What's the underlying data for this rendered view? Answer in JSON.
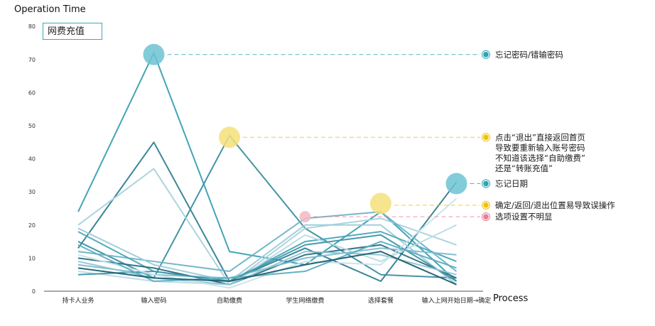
{
  "chart_data": {
    "type": "line",
    "title": "网费充值",
    "ylabel": "Operation Time",
    "xlabel": "Process",
    "ylim": [
      0,
      80
    ],
    "yticks": [
      0,
      10,
      20,
      30,
      40,
      50,
      60,
      70,
      80
    ],
    "grid": false,
    "categories": [
      "持卡人业务",
      "输入密码",
      "自助缴费",
      "学生网络缴费",
      "选择套餐",
      "输入上网开始日期→确定"
    ],
    "series": [
      {
        "color": "#3a9fb2",
        "values": [
          24,
          72,
          12,
          8,
          24,
          3
        ]
      },
      {
        "color": "#2f7f90",
        "values": [
          13,
          45,
          3,
          13,
          3,
          33
        ]
      },
      {
        "color": "#3c8ea0",
        "values": [
          15,
          4,
          47,
          19,
          5,
          4
        ]
      },
      {
        "color": "#a8d2de",
        "values": [
          20,
          37,
          2,
          19,
          22,
          14
        ]
      },
      {
        "color": "#6ab4c6",
        "values": [
          12,
          9,
          6,
          22,
          24,
          6
        ]
      },
      {
        "color": "#9fcbd8",
        "values": [
          19,
          8,
          3,
          20,
          20,
          2
        ]
      },
      {
        "color": "#4aa6b8",
        "values": [
          18,
          6,
          3,
          15,
          18,
          9
        ]
      },
      {
        "color": "#2c6e7e",
        "values": [
          10,
          7,
          2,
          11,
          14,
          4
        ]
      },
      {
        "color": "#7cbccd",
        "values": [
          8,
          5,
          4,
          10,
          13,
          11
        ]
      },
      {
        "color": "#b9dbe5",
        "values": [
          6,
          3,
          2,
          17,
          9,
          20
        ]
      },
      {
        "color": "#3d95a8",
        "values": [
          5,
          6,
          3,
          14,
          17,
          3
        ]
      },
      {
        "color": "#8ec5d3",
        "values": [
          9,
          4,
          2,
          12,
          11,
          5
        ]
      },
      {
        "color": "#c9e3eb",
        "values": [
          11,
          5,
          1,
          9,
          8,
          28
        ]
      },
      {
        "color": "#5aaec0",
        "values": [
          14,
          3,
          4,
          6,
          15,
          7
        ]
      },
      {
        "color": "#1f5e6e",
        "values": [
          7,
          4,
          3,
          8,
          12,
          2
        ]
      }
    ],
    "highlights": [
      {
        "category_index": 1,
        "y": 71.5,
        "color": "#6cc3d2",
        "annotation_y": 71.5,
        "dot_color": "#2aa3b5",
        "label": "忘记密码/错输密码"
      },
      {
        "category_index": 2,
        "y": 46.5,
        "color": "#f4e07a",
        "annotation_y": 46.5,
        "dot_color": "#f2c200",
        "label": "点击“退出”直接返回首页\n导致要重新输入账号密码\n不知道该选择“自助缴费”\n还是“转账充值”"
      },
      {
        "category_index": 5,
        "y": 32.5,
        "color": "#6cc3d2",
        "annotation_y": 32.5,
        "dot_color": "#2aa3b5",
        "label": "忘记日期"
      },
      {
        "category_index": 4,
        "y": 26.5,
        "color": "#f4e07a",
        "annotation_y": 26,
        "dot_color": "#f2c200",
        "label": "确定/返回/退出位置易导致误操作"
      },
      {
        "category_index": 3,
        "y": 22.5,
        "color": "#f2b8c6",
        "annotation_y": 22.5,
        "dot_color": "#e87e98",
        "label": "选项设置不明显"
      }
    ]
  }
}
